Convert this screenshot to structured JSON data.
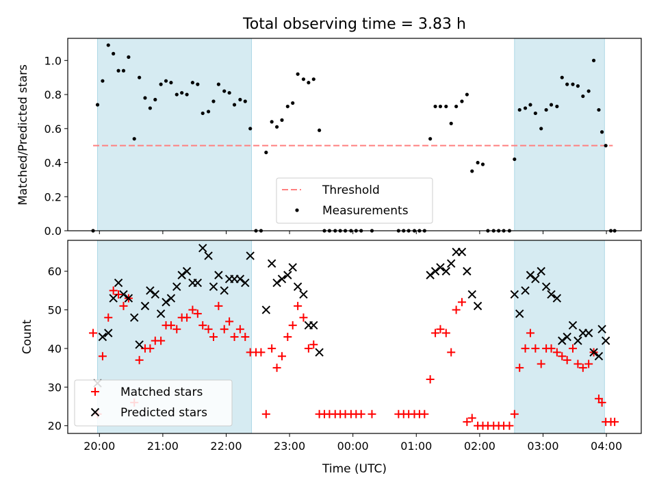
{
  "title": "Total observing time = 3.83 h",
  "colors": {
    "shade": "#add8e6",
    "threshold": "#ff7f7f",
    "matched": "#ff0000",
    "predicted": "#000000",
    "measurement": "#000000"
  },
  "chart_data": [
    {
      "type": "scatter",
      "ylabel": "Matched/Predicted stars",
      "ylim": [
        0,
        1.13
      ],
      "yticks": [
        "0.0",
        "0.2",
        "0.4",
        "0.6",
        "0.8",
        "1.0"
      ],
      "xlim": [
        -0.5,
        8.55
      ],
      "grid": false,
      "legend_position": "lower center",
      "legend": [
        "Threshold",
        "Measurements"
      ],
      "shaded_spans": [
        [
          -0.03,
          2.4
        ],
        [
          6.55,
          7.97
        ]
      ],
      "threshold": {
        "name": "Threshold",
        "y": 0.5,
        "x": [
          -0.1,
          8.1
        ]
      },
      "series": [
        {
          "name": "Measurements",
          "points": [
            [
              -0.1,
              0.0
            ],
            [
              -0.03,
              0.74
            ],
            [
              0.05,
              0.88
            ],
            [
              0.14,
              1.09
            ],
            [
              0.22,
              1.04
            ],
            [
              0.3,
              0.94
            ],
            [
              0.38,
              0.94
            ],
            [
              0.46,
              1.02
            ],
            [
              0.55,
              0.54
            ],
            [
              0.63,
              0.9
            ],
            [
              0.72,
              0.78
            ],
            [
              0.8,
              0.72
            ],
            [
              0.88,
              0.77
            ],
            [
              0.97,
              0.86
            ],
            [
              1.05,
              0.88
            ],
            [
              1.13,
              0.87
            ],
            [
              1.22,
              0.8
            ],
            [
              1.3,
              0.81
            ],
            [
              1.38,
              0.8
            ],
            [
              1.47,
              0.87
            ],
            [
              1.55,
              0.86
            ],
            [
              1.63,
              0.69
            ],
            [
              1.72,
              0.7
            ],
            [
              1.8,
              0.76
            ],
            [
              1.88,
              0.86
            ],
            [
              1.97,
              0.82
            ],
            [
              2.05,
              0.81
            ],
            [
              2.13,
              0.74
            ],
            [
              2.22,
              0.77
            ],
            [
              2.3,
              0.76
            ],
            [
              2.38,
              0.6
            ],
            [
              2.47,
              0.0
            ],
            [
              2.55,
              0.0
            ],
            [
              2.63,
              0.46
            ],
            [
              2.72,
              0.64
            ],
            [
              2.8,
              0.61
            ],
            [
              2.88,
              0.65
            ],
            [
              2.97,
              0.73
            ],
            [
              3.05,
              0.75
            ],
            [
              3.13,
              0.92
            ],
            [
              3.22,
              0.89
            ],
            [
              3.3,
              0.87
            ],
            [
              3.38,
              0.89
            ],
            [
              3.47,
              0.59
            ],
            [
              3.55,
              0.0
            ],
            [
              3.63,
              0.0
            ],
            [
              3.72,
              0.0
            ],
            [
              3.8,
              0.0
            ],
            [
              3.88,
              0.0
            ],
            [
              3.97,
              0.0
            ],
            [
              4.05,
              0.0
            ],
            [
              4.13,
              0.0
            ],
            [
              4.3,
              0.0
            ],
            [
              4.72,
              0.0
            ],
            [
              4.8,
              0.0
            ],
            [
              4.88,
              0.0
            ],
            [
              4.97,
              0.0
            ],
            [
              5.05,
              0.0
            ],
            [
              5.13,
              0.0
            ],
            [
              5.22,
              0.54
            ],
            [
              5.3,
              0.73
            ],
            [
              5.38,
              0.73
            ],
            [
              5.47,
              0.73
            ],
            [
              5.55,
              0.63
            ],
            [
              5.63,
              0.73
            ],
            [
              5.72,
              0.76
            ],
            [
              5.8,
              0.8
            ],
            [
              5.88,
              0.35
            ],
            [
              5.97,
              0.4
            ],
            [
              6.05,
              0.39
            ],
            [
              6.13,
              0.0
            ],
            [
              6.22,
              0.0
            ],
            [
              6.3,
              0.0
            ],
            [
              6.38,
              0.0
            ],
            [
              6.47,
              0.0
            ],
            [
              6.55,
              0.42
            ],
            [
              6.63,
              0.71
            ],
            [
              6.72,
              0.72
            ],
            [
              6.8,
              0.74
            ],
            [
              6.88,
              0.69
            ],
            [
              6.97,
              0.6
            ],
            [
              7.05,
              0.71
            ],
            [
              7.13,
              0.74
            ],
            [
              7.22,
              0.73
            ],
            [
              7.3,
              0.9
            ],
            [
              7.38,
              0.86
            ],
            [
              7.47,
              0.86
            ],
            [
              7.55,
              0.85
            ],
            [
              7.63,
              0.79
            ],
            [
              7.72,
              0.82
            ],
            [
              7.8,
              1.0
            ],
            [
              7.88,
              0.71
            ],
            [
              7.93,
              0.58
            ],
            [
              7.99,
              0.5
            ],
            [
              8.07,
              0.0
            ],
            [
              8.13,
              0.0
            ]
          ]
        }
      ]
    },
    {
      "type": "scatter",
      "xlabel": "Time (UTC)",
      "ylabel": "Count",
      "ylim": [
        18,
        68
      ],
      "yticks": [
        "20",
        "30",
        "40",
        "50",
        "60"
      ],
      "xlim": [
        -0.5,
        8.55
      ],
      "x_tick_labels": [
        "20:00",
        "21:00",
        "22:00",
        "23:00",
        "00:00",
        "01:00",
        "02:00",
        "03:00",
        "04:00"
      ],
      "grid": false,
      "legend_position": "lower left",
      "legend": [
        "Matched stars",
        "Predicted stars"
      ],
      "shaded_spans": [
        [
          -0.03,
          2.4
        ],
        [
          6.55,
          7.97
        ]
      ],
      "series": [
        {
          "name": "Matched stars",
          "marker": "+",
          "points": [
            [
              -0.1,
              44
            ],
            [
              -0.03,
              23
            ],
            [
              0.05,
              38
            ],
            [
              0.14,
              48
            ],
            [
              0.22,
              55
            ],
            [
              0.3,
              54
            ],
            [
              0.38,
              51
            ],
            [
              0.46,
              53
            ],
            [
              0.55,
              26
            ],
            [
              0.63,
              37
            ],
            [
              0.72,
              40
            ],
            [
              0.8,
              40
            ],
            [
              0.88,
              42
            ],
            [
              0.97,
              42
            ],
            [
              1.05,
              46
            ],
            [
              1.13,
              46
            ],
            [
              1.22,
              45
            ],
            [
              1.3,
              48
            ],
            [
              1.38,
              48
            ],
            [
              1.47,
              50
            ],
            [
              1.55,
              49
            ],
            [
              1.63,
              46
            ],
            [
              1.72,
              45
            ],
            [
              1.8,
              43
            ],
            [
              1.88,
              51
            ],
            [
              1.97,
              45
            ],
            [
              2.05,
              47
            ],
            [
              2.13,
              43
            ],
            [
              2.22,
              45
            ],
            [
              2.3,
              43
            ],
            [
              2.38,
              39
            ],
            [
              2.47,
              39
            ],
            [
              2.55,
              39
            ],
            [
              2.63,
              23
            ],
            [
              2.72,
              40
            ],
            [
              2.8,
              35
            ],
            [
              2.88,
              38
            ],
            [
              2.97,
              43
            ],
            [
              3.05,
              46
            ],
            [
              3.13,
              51
            ],
            [
              3.22,
              48
            ],
            [
              3.3,
              40
            ],
            [
              3.38,
              41
            ],
            [
              3.47,
              23
            ],
            [
              3.55,
              23
            ],
            [
              3.63,
              23
            ],
            [
              3.72,
              23
            ],
            [
              3.8,
              23
            ],
            [
              3.88,
              23
            ],
            [
              3.97,
              23
            ],
            [
              4.05,
              23
            ],
            [
              4.13,
              23
            ],
            [
              4.3,
              23
            ],
            [
              4.72,
              23
            ],
            [
              4.8,
              23
            ],
            [
              4.88,
              23
            ],
            [
              4.97,
              23
            ],
            [
              5.05,
              23
            ],
            [
              5.13,
              23
            ],
            [
              5.22,
              32
            ],
            [
              5.3,
              44
            ],
            [
              5.38,
              45
            ],
            [
              5.47,
              44
            ],
            [
              5.55,
              39
            ],
            [
              5.63,
              50
            ],
            [
              5.72,
              52
            ],
            [
              5.8,
              21
            ],
            [
              5.88,
              22
            ],
            [
              5.97,
              20
            ],
            [
              6.05,
              20
            ],
            [
              6.13,
              20
            ],
            [
              6.22,
              20
            ],
            [
              6.3,
              20
            ],
            [
              6.38,
              20
            ],
            [
              6.47,
              20
            ],
            [
              6.55,
              23
            ],
            [
              6.63,
              35
            ],
            [
              6.72,
              40
            ],
            [
              6.8,
              44
            ],
            [
              6.88,
              40
            ],
            [
              6.97,
              36
            ],
            [
              7.05,
              40
            ],
            [
              7.13,
              40
            ],
            [
              7.22,
              39
            ],
            [
              7.3,
              38
            ],
            [
              7.38,
              37
            ],
            [
              7.47,
              40
            ],
            [
              7.55,
              36
            ],
            [
              7.63,
              35
            ],
            [
              7.72,
              36
            ],
            [
              7.8,
              39
            ],
            [
              7.88,
              27
            ],
            [
              7.93,
              26
            ],
            [
              7.99,
              21
            ],
            [
              8.07,
              21
            ],
            [
              8.13,
              21
            ]
          ]
        },
        {
          "name": "Predicted stars",
          "marker": "x",
          "points": [
            [
              -0.03,
              31
            ],
            [
              0.05,
              43
            ],
            [
              0.14,
              44
            ],
            [
              0.22,
              53
            ],
            [
              0.3,
              57
            ],
            [
              0.38,
              54
            ],
            [
              0.46,
              53
            ],
            [
              0.55,
              48
            ],
            [
              0.63,
              41
            ],
            [
              0.72,
              51
            ],
            [
              0.8,
              55
            ],
            [
              0.88,
              54
            ],
            [
              0.97,
              49
            ],
            [
              1.05,
              52
            ],
            [
              1.13,
              53
            ],
            [
              1.22,
              56
            ],
            [
              1.3,
              59
            ],
            [
              1.38,
              60
            ],
            [
              1.47,
              57
            ],
            [
              1.55,
              57
            ],
            [
              1.63,
              66
            ],
            [
              1.72,
              64
            ],
            [
              1.8,
              56
            ],
            [
              1.88,
              59
            ],
            [
              1.97,
              55
            ],
            [
              2.05,
              58
            ],
            [
              2.13,
              58
            ],
            [
              2.22,
              58
            ],
            [
              2.3,
              57
            ],
            [
              2.38,
              64
            ],
            [
              2.63,
              50
            ],
            [
              2.72,
              62
            ],
            [
              2.8,
              57
            ],
            [
              2.88,
              58
            ],
            [
              2.97,
              59
            ],
            [
              3.05,
              61
            ],
            [
              3.13,
              56
            ],
            [
              3.22,
              54
            ],
            [
              3.3,
              46
            ],
            [
              3.38,
              46
            ],
            [
              3.47,
              39
            ],
            [
              5.22,
              59
            ],
            [
              5.3,
              60
            ],
            [
              5.38,
              61
            ],
            [
              5.47,
              60
            ],
            [
              5.55,
              62
            ],
            [
              5.63,
              65
            ],
            [
              5.72,
              65
            ],
            [
              5.8,
              60
            ],
            [
              5.88,
              54
            ],
            [
              5.97,
              51
            ],
            [
              6.55,
              54
            ],
            [
              6.63,
              49
            ],
            [
              6.72,
              55
            ],
            [
              6.8,
              59
            ],
            [
              6.88,
              58
            ],
            [
              6.97,
              60
            ],
            [
              7.05,
              56
            ],
            [
              7.13,
              54
            ],
            [
              7.22,
              53
            ],
            [
              7.3,
              42
            ],
            [
              7.38,
              43
            ],
            [
              7.47,
              46
            ],
            [
              7.55,
              42
            ],
            [
              7.63,
              44
            ],
            [
              7.72,
              44
            ],
            [
              7.8,
              39
            ],
            [
              7.88,
              38
            ],
            [
              7.93,
              45
            ],
            [
              7.99,
              42
            ]
          ]
        }
      ]
    }
  ]
}
